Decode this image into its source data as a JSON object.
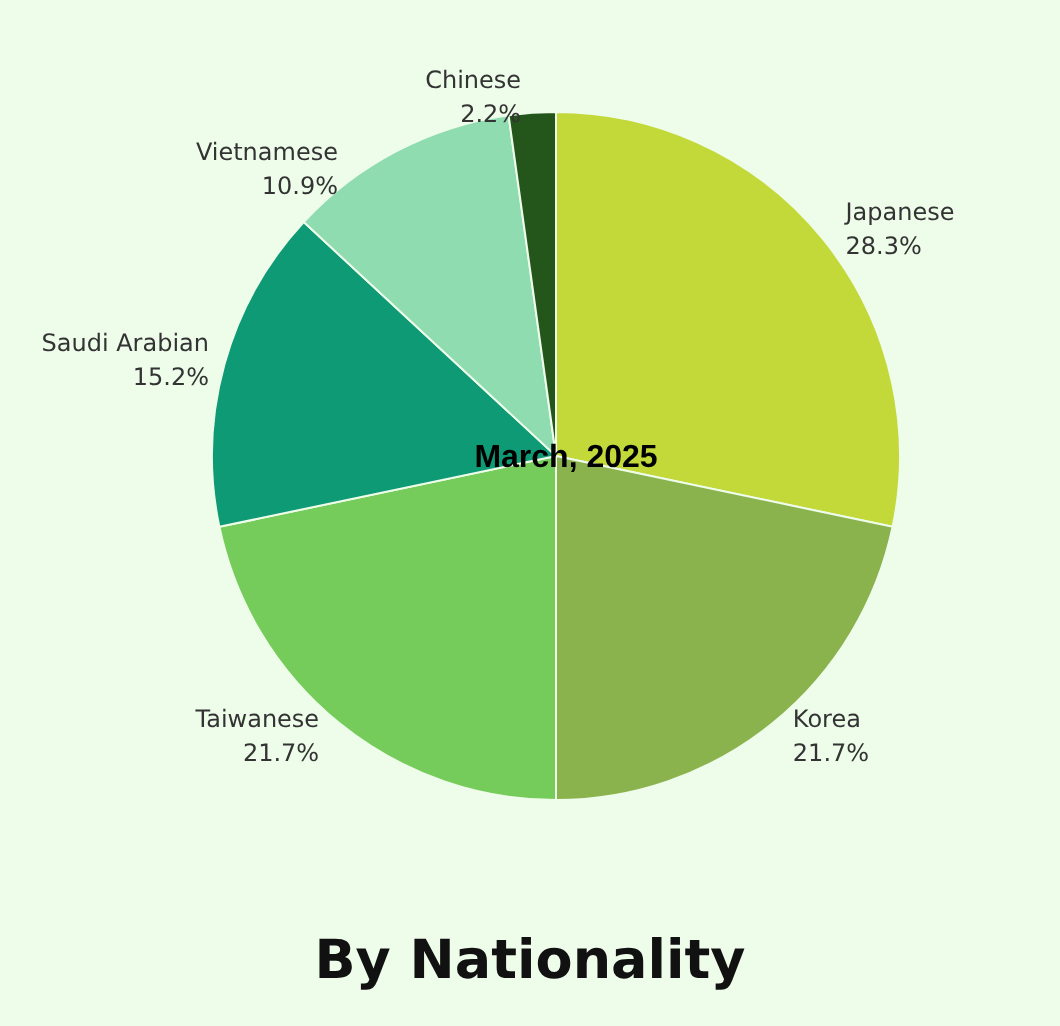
{
  "chart_data": {
    "type": "pie",
    "title": "By Nationality",
    "subtitle": "March, 2025",
    "categories": [
      "Japanese",
      "Korea",
      "Taiwanese",
      "Saudi Arabian",
      "Vietnamese",
      "Chinese"
    ],
    "values": [
      28.3,
      21.7,
      21.7,
      15.2,
      10.9,
      2.2
    ],
    "value_labels": [
      "28.3%",
      "21.7%",
      "21.7%",
      "15.2%",
      "10.9%",
      "2.2%"
    ],
    "colors": [
      "#c3d93a",
      "#8ab34e",
      "#76cc5a",
      "#0e9a74",
      "#8fdcb0",
      "#24561c"
    ],
    "legend": false
  }
}
